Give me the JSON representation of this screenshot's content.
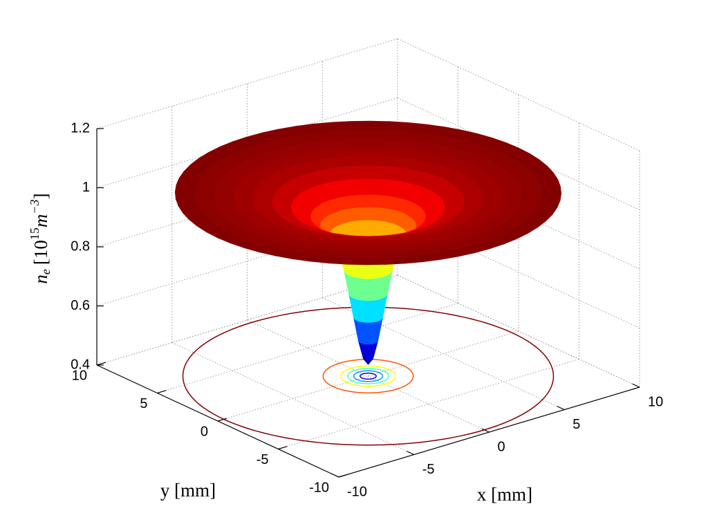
{
  "chart_data": {
    "type": "surface",
    "xlabel": "x [mm]",
    "ylabel": "y [mm]",
    "zlabel": [
      "n",
      "e",
      "[10",
      "15",
      "m",
      "−3",
      "]"
    ],
    "xlim": [
      -10,
      10
    ],
    "ylim": [
      -10,
      10
    ],
    "zlim": [
      0.4,
      1.2
    ],
    "xticks": [
      -10,
      -5,
      0,
      5,
      10
    ],
    "yticks": [
      -10,
      -5,
      0,
      5,
      10
    ],
    "zticks": [
      0.4,
      0.6,
      0.8,
      1,
      1.2
    ],
    "grid": true,
    "colormap": "jet",
    "radial_profile": {
      "r": [
        0,
        0.25,
        0.5,
        0.75,
        1,
        1.25,
        1.5,
        2,
        2.5,
        3,
        4,
        5,
        6,
        7,
        8,
        9,
        10
      ],
      "values": [
        0.44,
        0.46,
        0.52,
        0.6,
        0.68,
        0.76,
        0.82,
        0.88,
        0.91,
        0.94,
        0.97,
        0.99,
        1.0,
        1.005,
        1.01,
        1.015,
        1.02
      ]
    },
    "contour_levels": [
      0.5,
      0.6,
      0.7,
      0.8,
      0.9,
      1.018
    ]
  }
}
